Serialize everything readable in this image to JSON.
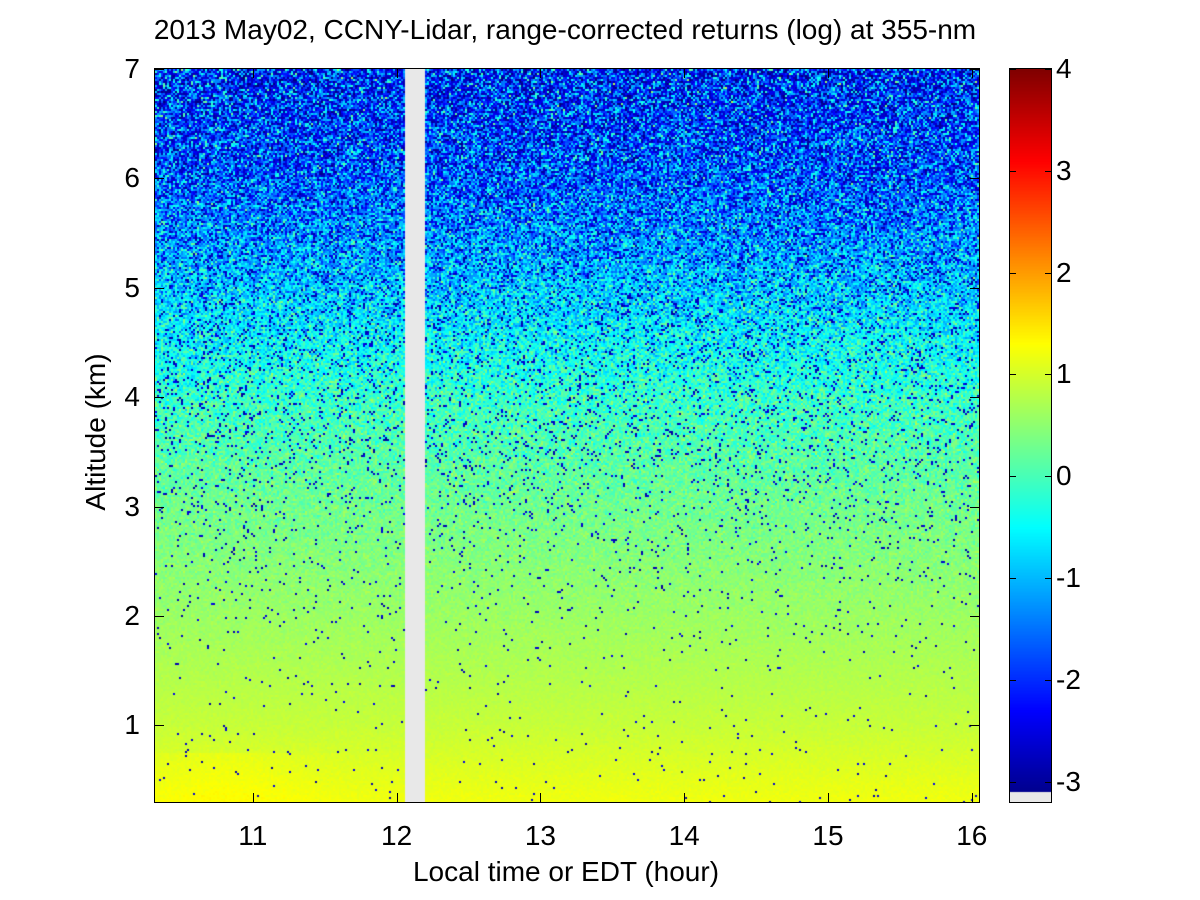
{
  "chart_data": {
    "type": "heatmap",
    "title": "2013 May02, CCNY-Lidar, range-corrected returns (log) at 355-nm",
    "xlabel": "Local time or EDT (hour)",
    "ylabel": "Altitude (km)",
    "xlim": [
      10.32,
      16.05
    ],
    "ylim": [
      0.3,
      7
    ],
    "xticks": [
      "11",
      "12",
      "13",
      "14",
      "15",
      "16"
    ],
    "yticks": [
      "1",
      "2",
      "3",
      "4",
      "5",
      "6",
      "7"
    ],
    "colorbar": {
      "colormap": "jet",
      "clim": [
        -3.2,
        4
      ],
      "ticks": [
        "-3",
        "-2",
        "-1",
        "0",
        "1",
        "2",
        "3",
        "4"
      ],
      "missing_color": "#e8e8e8"
    },
    "data_gap": {
      "x_start": 12.07,
      "x_end": 12.19
    },
    "value_profile": [
      {
        "altitude_km": 0.3,
        "mean_log_value": 1.2
      },
      {
        "altitude_km": 1.0,
        "mean_log_value": 0.9
      },
      {
        "altitude_km": 2.0,
        "mean_log_value": 0.6
      },
      {
        "altitude_km": 3.0,
        "mean_log_value": 0.3
      },
      {
        "altitude_km": 4.0,
        "mean_log_value": -0.1
      },
      {
        "altitude_km": 5.0,
        "mean_log_value": -0.8
      },
      {
        "altitude_km": 6.0,
        "mean_log_value": -1.5
      },
      {
        "altitude_km": 7.0,
        "mean_log_value": -1.8
      }
    ],
    "grid": false
  }
}
